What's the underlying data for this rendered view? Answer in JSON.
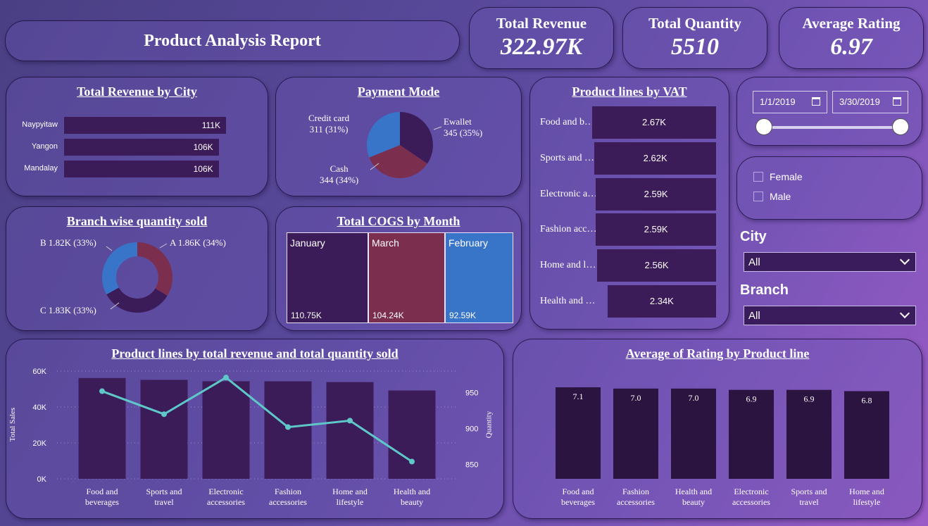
{
  "header": {
    "title": "Product Analysis Report"
  },
  "kpis": [
    {
      "label": "Total Revenue",
      "value": "322.97K"
    },
    {
      "label": "Total Quantity",
      "value": "5510"
    },
    {
      "label": "Average Rating",
      "value": "6.97"
    }
  ],
  "revenue_by_city": {
    "title": "Total Revenue by City",
    "rows": [
      {
        "city": "Naypyitaw",
        "label": "111K",
        "value": 111
      },
      {
        "city": "Yangon",
        "label": "106K",
        "value": 106
      },
      {
        "city": "Mandalay",
        "label": "106K",
        "value": 106
      }
    ]
  },
  "payment_mode": {
    "title": "Payment Mode",
    "slices": [
      {
        "name": "Ewallet",
        "label": "345 (35%)",
        "value": 345,
        "color": "#3b1b58"
      },
      {
        "name": "Cash",
        "label": "344 (34%)",
        "value": 344,
        "color": "#7b2e4e"
      },
      {
        "name": "Credit card",
        "label": "311 (31%)",
        "value": 311,
        "color": "#3874c8"
      }
    ]
  },
  "vat_by_product": {
    "title": "Product lines by VAT",
    "rows": [
      {
        "name": "Food and b…",
        "label": "2.67K",
        "value": 2.67
      },
      {
        "name": "Sports and …",
        "label": "2.62K",
        "value": 2.62
      },
      {
        "name": "Electronic a…",
        "label": "2.59K",
        "value": 2.59
      },
      {
        "name": "Fashion acc…",
        "label": "2.59K",
        "value": 2.59
      },
      {
        "name": "Home and l…",
        "label": "2.56K",
        "value": 2.56
      },
      {
        "name": "Health and …",
        "label": "2.34K",
        "value": 2.34
      }
    ]
  },
  "branch_quantity": {
    "title": "Branch wise quantity sold",
    "slices": [
      {
        "name": "A",
        "label": "A 1.86K (34%)",
        "value": 1.86,
        "color": "#7b2e4e"
      },
      {
        "name": "C",
        "label": "C 1.83K (33%)",
        "value": 1.83,
        "color": "#3b1b58"
      },
      {
        "name": "B",
        "label": "B 1.82K (33%)",
        "value": 1.82,
        "color": "#3874c8"
      }
    ]
  },
  "cogs_by_month": {
    "title": "Total COGS by Month",
    "cells": [
      {
        "month": "January",
        "label": "110.75K",
        "value": 110.75,
        "color": "#3b1b58"
      },
      {
        "month": "March",
        "label": "104.24K",
        "value": 104.24,
        "color": "#7b2e4e"
      },
      {
        "month": "February",
        "label": "92.59K",
        "value": 92.59,
        "color": "#3874c8"
      }
    ]
  },
  "filters": {
    "date_start": "1/1/2019",
    "date_end": "3/30/2019",
    "gender_options": [
      "Female",
      "Male"
    ],
    "city_label": "City",
    "city_value": "All",
    "branch_label": "Branch",
    "branch_value": "All"
  },
  "chart_data": [
    {
      "type": "bar",
      "title": "Product lines by total revenue and total quantity sold",
      "categories": [
        "Food and beverages",
        "Sports and travel",
        "Electronic accessories",
        "Fashion accessories",
        "Home and lifestyle",
        "Health and beauty"
      ],
      "series": [
        {
          "name": "Total Sales",
          "values": [
            56144,
            55123,
            54337,
            54306,
            53862,
            49193
          ]
        },
        {
          "name": "Quantity",
          "values": [
            952,
            920,
            971,
            902,
            911,
            854
          ]
        }
      ],
      "ylabel": "Total Sales",
      "y2label": "Quantity",
      "ylim": [
        0,
        60000
      ],
      "y2lim": [
        830,
        980
      ],
      "yticks": [
        "0K",
        "20K",
        "40K",
        "60K"
      ],
      "y2ticks": [
        "850",
        "900",
        "950"
      ],
      "colors": {
        "bar": "#3b1b58",
        "line": "#5ec8c8"
      }
    },
    {
      "type": "bar",
      "title": "Average of Rating by Product line",
      "categories": [
        "Food and beverages",
        "Fashion accessories",
        "Health and beauty",
        "Electronic accessories",
        "Sports and travel",
        "Home and lifestyle"
      ],
      "values": [
        7.1,
        7.0,
        7.0,
        6.9,
        6.9,
        6.8
      ],
      "labels": [
        "7.1",
        "7.0",
        "7.0",
        "6.9",
        "6.9",
        "6.8"
      ],
      "colors": {
        "bar": "#2c1440"
      }
    }
  ]
}
